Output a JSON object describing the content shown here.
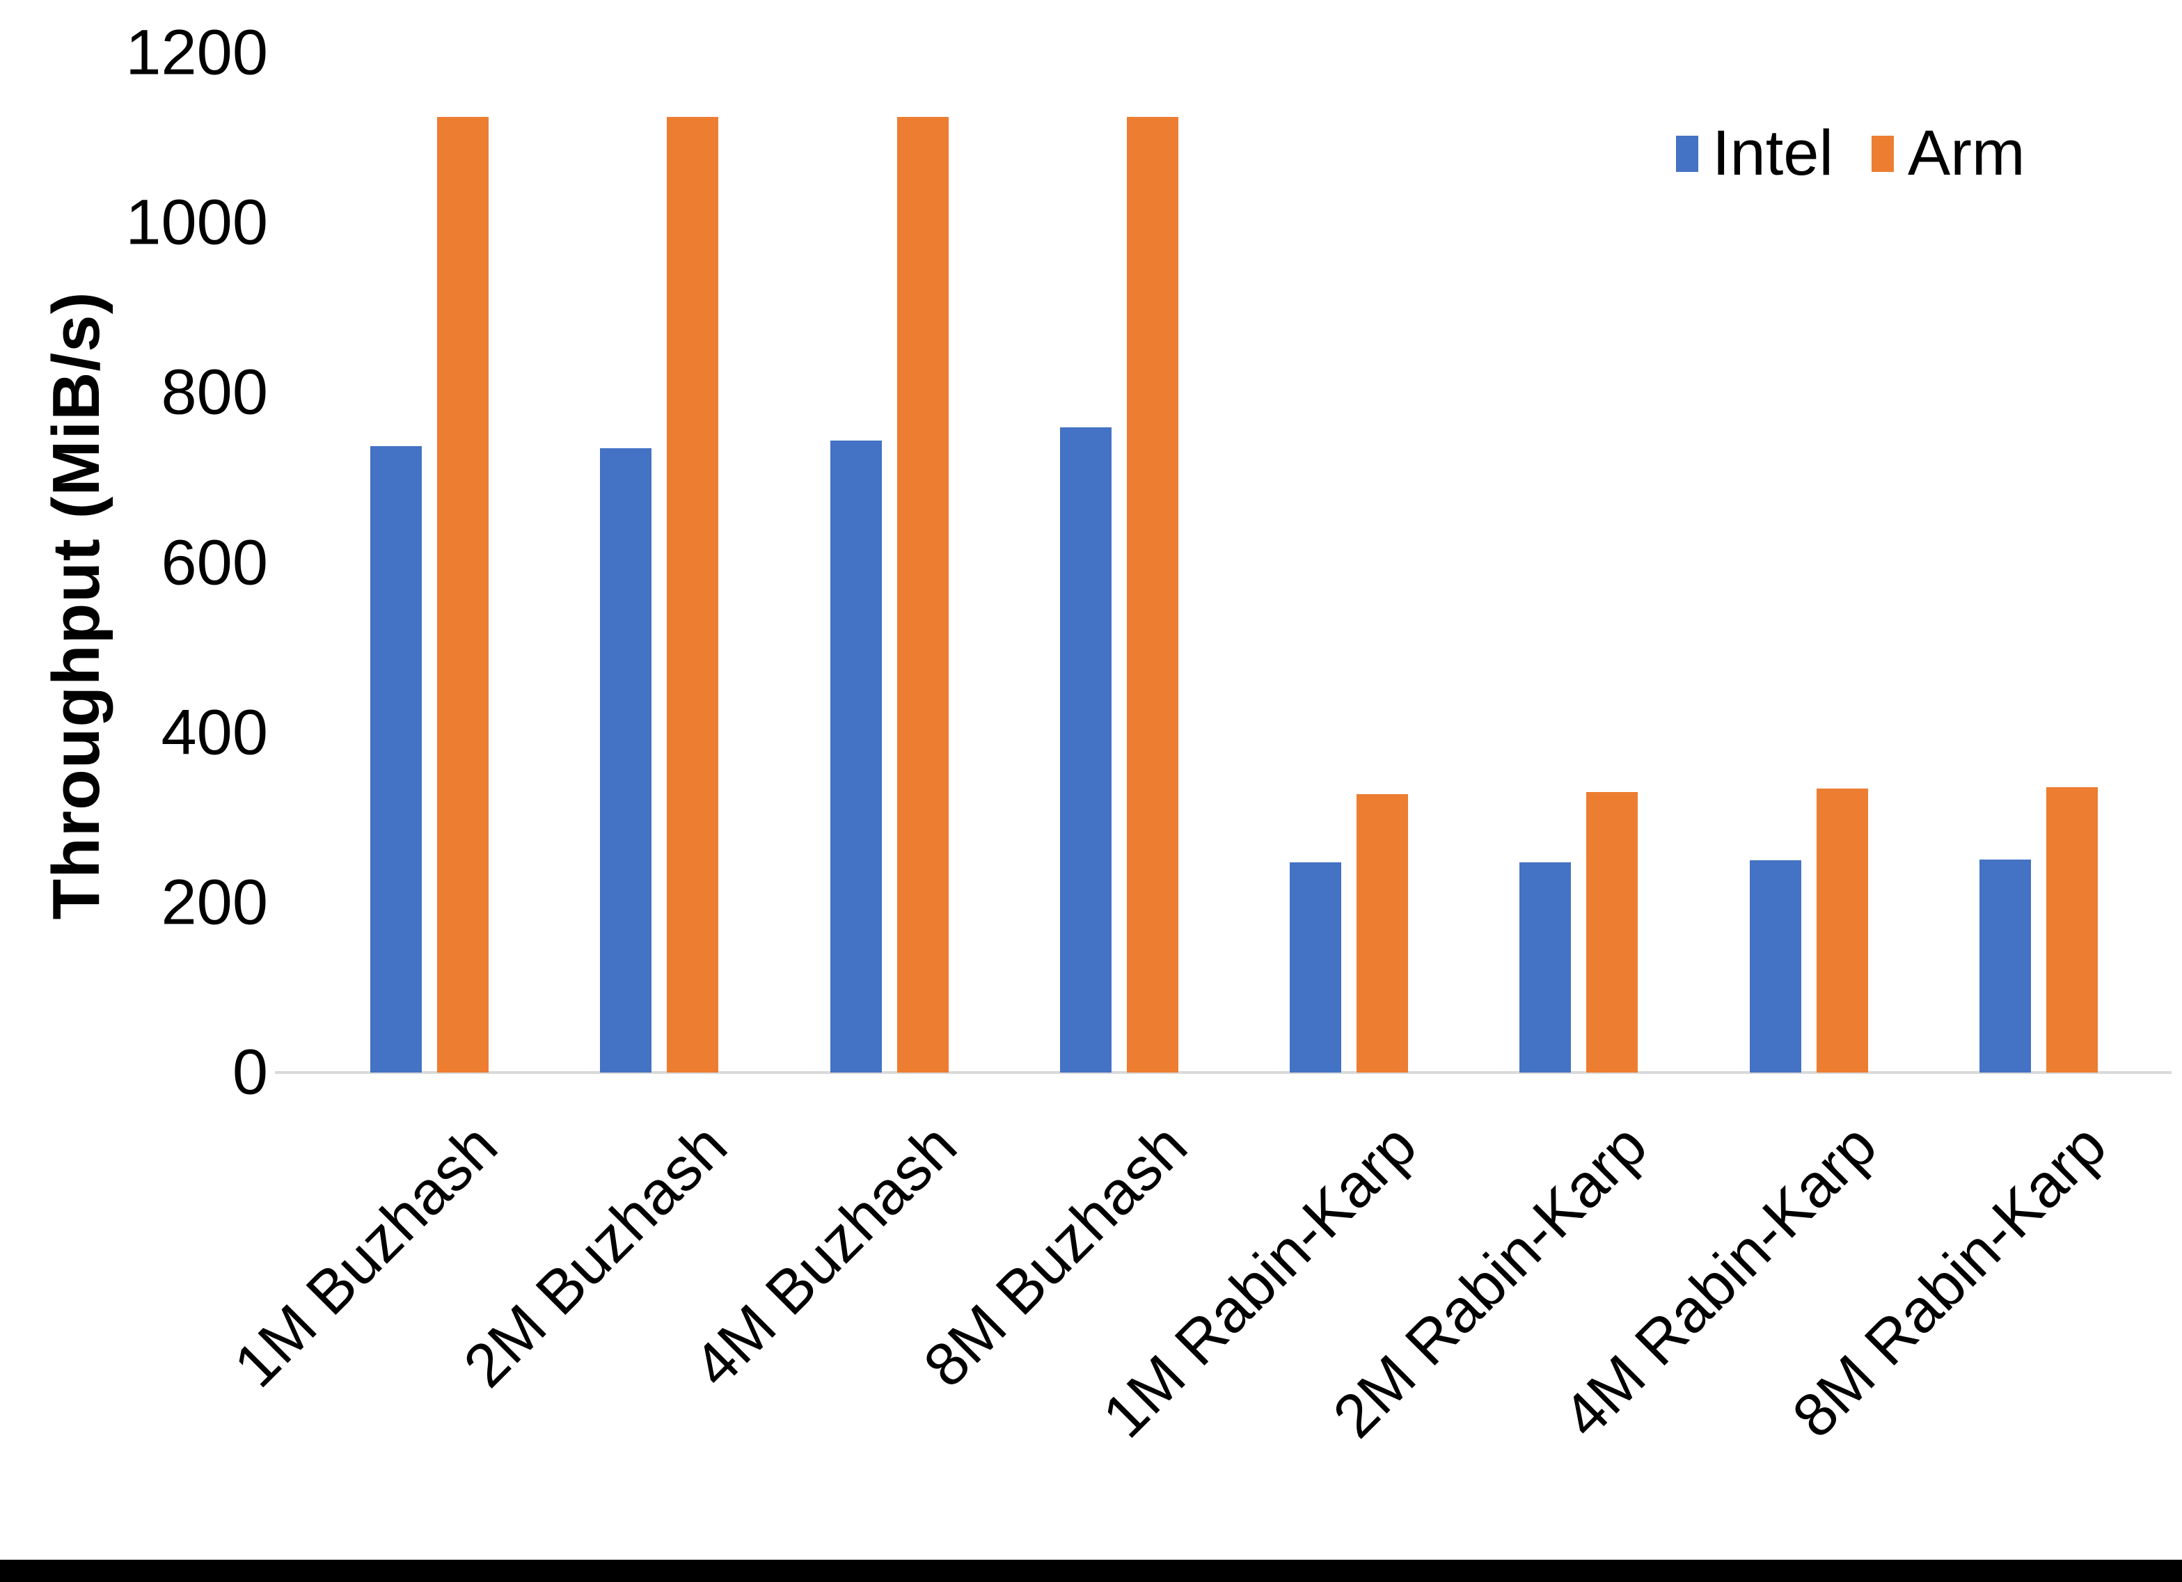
{
  "chart_data": {
    "type": "bar",
    "title": "",
    "xlabel": "",
    "ylabel": "Throughput (MiB/s)",
    "ylim": [
      0,
      1200
    ],
    "yticks": [
      0,
      200,
      400,
      600,
      800,
      1000,
      1200
    ],
    "grid": false,
    "legend_position": "top-right",
    "categories": [
      "1M Buzhash",
      "2M Buzhash",
      "4M Buzhash",
      "8M Buzhash",
      "1M Rabin-Karp",
      "2M Rabin-Karp",
      "4M Rabin-Karp",
      "8M Rabin-Karp"
    ],
    "series": [
      {
        "name": "Intel",
        "color": "#4472C4",
        "values": [
          737,
          735,
          744,
          759,
          247,
          247,
          250,
          251
        ]
      },
      {
        "name": "Arm",
        "color": "#ED7D31",
        "values": [
          1125,
          1125,
          1125,
          1125,
          328,
          330,
          334,
          336
        ]
      }
    ]
  },
  "colors": {
    "axis_line": "#D9D9D9",
    "text": "#000000",
    "bottom_border": "#000000"
  }
}
